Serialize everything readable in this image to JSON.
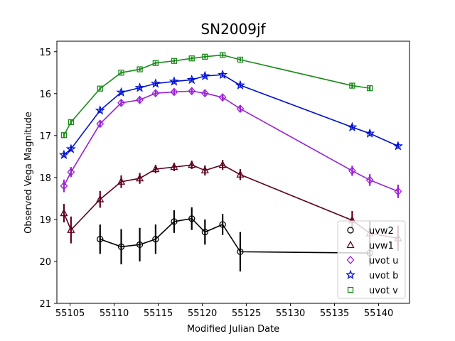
{
  "chart_data": {
    "type": "line",
    "title": "SN2009jf",
    "xlabel": "Modified Julian Date",
    "ylabel": "Observed Vega Magnitude",
    "xlim": [
      55103.5,
      55143.5
    ],
    "ylim": [
      21,
      14.75
    ],
    "y_inverted": true,
    "xticks": [
      55105,
      55110,
      55115,
      55120,
      55125,
      55130,
      55135,
      55140
    ],
    "yticks": [
      15,
      16,
      17,
      18,
      19,
      20,
      21
    ],
    "grid": false,
    "legend_position": "lower-right",
    "series": [
      {
        "name": "uvw2",
        "color": "#000000",
        "marker": "circle",
        "points": [
          {
            "x": 55108.4,
            "y": 19.47,
            "err": 0.35
          },
          {
            "x": 55110.8,
            "y": 19.65,
            "err": 0.42
          },
          {
            "x": 55112.9,
            "y": 19.6,
            "err": 0.4
          },
          {
            "x": 55114.7,
            "y": 19.47,
            "err": 0.35
          },
          {
            "x": 55116.8,
            "y": 19.05,
            "err": 0.27
          },
          {
            "x": 55118.8,
            "y": 18.98,
            "err": 0.27
          },
          {
            "x": 55120.3,
            "y": 19.3,
            "err": 0.3
          },
          {
            "x": 55122.3,
            "y": 19.12,
            "err": 0.25
          },
          {
            "x": 55124.3,
            "y": 19.77,
            "err": 0.47
          },
          {
            "x": 55139.0,
            "y": 19.8,
            "err": 0.3
          }
        ]
      },
      {
        "name": "uvw1",
        "color": "#5e0022",
        "marker": "triangle",
        "points": [
          {
            "x": 55104.3,
            "y": 18.85,
            "err": 0.22
          },
          {
            "x": 55105.1,
            "y": 19.25,
            "err": 0.32
          },
          {
            "x": 55108.4,
            "y": 18.52,
            "err": 0.2
          },
          {
            "x": 55110.8,
            "y": 18.1,
            "err": 0.15
          },
          {
            "x": 55112.9,
            "y": 18.02,
            "err": 0.13
          },
          {
            "x": 55114.7,
            "y": 17.8,
            "err": 0.1
          },
          {
            "x": 55116.8,
            "y": 17.75,
            "err": 0.1
          },
          {
            "x": 55118.8,
            "y": 17.7,
            "err": 0.1
          },
          {
            "x": 55120.3,
            "y": 17.83,
            "err": 0.12
          },
          {
            "x": 55122.3,
            "y": 17.7,
            "err": 0.12
          },
          {
            "x": 55124.3,
            "y": 17.93,
            "err": 0.13
          },
          {
            "x": 55137.0,
            "y": 19.02,
            "err": 0.22
          },
          {
            "x": 55139.0,
            "y": 19.33,
            "err": 0.3
          },
          {
            "x": 55142.2,
            "y": 19.45,
            "err": 0.3
          }
        ]
      },
      {
        "name": "uvot u",
        "color": "#9b1fd6",
        "marker": "diamond",
        "points": [
          {
            "x": 55104.3,
            "y": 18.2,
            "err": 0.15
          },
          {
            "x": 55105.1,
            "y": 17.87,
            "err": 0.12
          },
          {
            "x": 55108.4,
            "y": 16.72,
            "err": 0.08
          },
          {
            "x": 55110.8,
            "y": 16.22,
            "err": 0.07
          },
          {
            "x": 55112.9,
            "y": 16.15,
            "err": 0.07
          },
          {
            "x": 55114.7,
            "y": 15.99,
            "err": 0.06
          },
          {
            "x": 55116.8,
            "y": 15.96,
            "err": 0.06
          },
          {
            "x": 55118.8,
            "y": 15.94,
            "err": 0.06
          },
          {
            "x": 55120.3,
            "y": 15.99,
            "err": 0.06
          },
          {
            "x": 55122.3,
            "y": 16.09,
            "err": 0.06
          },
          {
            "x": 55124.3,
            "y": 16.36,
            "err": 0.07
          },
          {
            "x": 55137.0,
            "y": 17.84,
            "err": 0.12
          },
          {
            "x": 55139.0,
            "y": 18.06,
            "err": 0.14
          },
          {
            "x": 55142.2,
            "y": 18.33,
            "err": 0.16
          }
        ]
      },
      {
        "name": "uvot b",
        "color": "#0010d0",
        "marker": "star",
        "points": [
          {
            "x": 55104.3,
            "y": 17.46,
            "err": 0.05
          },
          {
            "x": 55105.1,
            "y": 17.32,
            "err": 0.05
          },
          {
            "x": 55108.4,
            "y": 16.4,
            "err": 0.04
          },
          {
            "x": 55110.8,
            "y": 15.97,
            "err": 0.04
          },
          {
            "x": 55112.9,
            "y": 15.86,
            "err": 0.04
          },
          {
            "x": 55114.7,
            "y": 15.76,
            "err": 0.04
          },
          {
            "x": 55116.8,
            "y": 15.71,
            "err": 0.04
          },
          {
            "x": 55118.8,
            "y": 15.67,
            "err": 0.04
          },
          {
            "x": 55120.3,
            "y": 15.58,
            "err": 0.04
          },
          {
            "x": 55122.3,
            "y": 15.55,
            "err": 0.04
          },
          {
            "x": 55124.3,
            "y": 15.8,
            "err": 0.04
          },
          {
            "x": 55137.0,
            "y": 16.8,
            "err": 0.05
          },
          {
            "x": 55139.0,
            "y": 16.95,
            "err": 0.05
          },
          {
            "x": 55142.2,
            "y": 17.25,
            "err": 0.06
          }
        ]
      },
      {
        "name": "uvot v",
        "color": "#1a8a1a",
        "marker": "square",
        "points": [
          {
            "x": 55104.3,
            "y": 16.99,
            "err": 0.05
          },
          {
            "x": 55105.1,
            "y": 16.68,
            "err": 0.05
          },
          {
            "x": 55108.4,
            "y": 15.88,
            "err": 0.04
          },
          {
            "x": 55110.8,
            "y": 15.5,
            "err": 0.04
          },
          {
            "x": 55112.9,
            "y": 15.42,
            "err": 0.04
          },
          {
            "x": 55114.7,
            "y": 15.27,
            "err": 0.04
          },
          {
            "x": 55116.8,
            "y": 15.22,
            "err": 0.04
          },
          {
            "x": 55118.8,
            "y": 15.16,
            "err": 0.04
          },
          {
            "x": 55120.3,
            "y": 15.12,
            "err": 0.04
          },
          {
            "x": 55122.3,
            "y": 15.08,
            "err": 0.04
          },
          {
            "x": 55124.3,
            "y": 15.19,
            "err": 0.04
          },
          {
            "x": 55137.0,
            "y": 15.81,
            "err": 0.05
          },
          {
            "x": 55139.0,
            "y": 15.87,
            "err": 0.05
          }
        ]
      }
    ]
  }
}
